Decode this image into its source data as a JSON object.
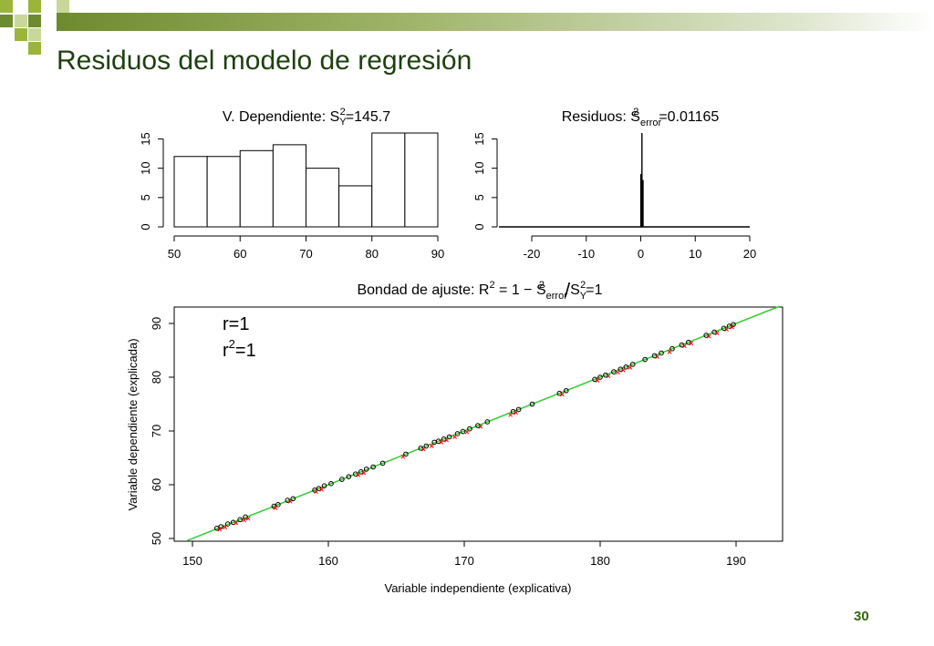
{
  "slide": {
    "title": "Residuos del modelo de regresión",
    "page_number": "30",
    "accent_colors": [
      "#6e8a2e",
      "#9bb53a",
      "#c8d79a"
    ]
  },
  "chart_data": [
    {
      "type": "bar",
      "subtype": "histogram",
      "title_main": "V. Dependiente: S",
      "title_sup": "2",
      "title_sub": "Y",
      "title_tail": "=145.7",
      "bin_edges": [
        50,
        55,
        60,
        65,
        70,
        75,
        80,
        85,
        90
      ],
      "values": [
        12,
        12,
        13,
        14,
        10,
        7,
        16,
        16
      ],
      "xlim": [
        50,
        90
      ],
      "ylim": [
        0,
        16
      ],
      "x_ticks": [
        "50",
        "60",
        "70",
        "80",
        "90"
      ],
      "y_ticks": [
        "0",
        "5",
        "10",
        "15"
      ]
    },
    {
      "type": "bar",
      "subtype": "histogram",
      "title_main": "Residuos: S",
      "title_sup": "2",
      "title_sub": "error",
      "title_tail": "=0.01165",
      "bars": [
        {
          "x": 0.0,
          "value": 9
        },
        {
          "x": 0.2,
          "value": 16
        },
        {
          "x": 0.4,
          "value": 8
        }
      ],
      "xlim": [
        -20,
        20
      ],
      "ylim": [
        0,
        16
      ],
      "x_ticks": [
        "-20",
        "-10",
        "0",
        "10",
        "20"
      ],
      "y_ticks": [
        "0",
        "5",
        "10",
        "15"
      ]
    },
    {
      "type": "scatter",
      "title_parts": {
        "lead": "Bondad de ajuste: R",
        "sup1": "2",
        "mid": " = 1 − S",
        "sup2": "2",
        "sub2": "error",
        "slash": "/",
        "tail1": "S",
        "sup3": "2",
        "sub3": "Y",
        "tail2": "=1"
      },
      "annotation_r": "r=1",
      "annotation_r2_base": "r",
      "annotation_r2_sup": "2",
      "annotation_r2_tail": "=1",
      "xlabel": "Variable independiente (explicativa)",
      "ylabel": "Variable dependiente (explicada)",
      "xlim": [
        149,
        193
      ],
      "ylim": [
        49,
        94
      ],
      "x_ticks": [
        "150",
        "160",
        "170",
        "180",
        "190"
      ],
      "y_ticks": [
        "50",
        "60",
        "70",
        "80",
        "90"
      ],
      "fit_line": {
        "intercept": -100,
        "slope": 1,
        "color": "#33cc33"
      },
      "series": [
        {
          "marker": "circle",
          "color": "#000000",
          "x": [
            151.8,
            152.1,
            152.6,
            153.0,
            153.5,
            153.9,
            156.0,
            156.3,
            157.0,
            157.4,
            159.0,
            159.3,
            159.7,
            160.2,
            161.0,
            161.5,
            162.0,
            162.4,
            162.8,
            163.3,
            164.0,
            165.7,
            166.8,
            167.2,
            167.8,
            168.1,
            168.5,
            168.9,
            169.5,
            169.9,
            170.4,
            171.0,
            171.7,
            173.6,
            174.0,
            175.0,
            177.0,
            177.5,
            179.6,
            180.0,
            180.4,
            181.0,
            181.5,
            181.9,
            182.4,
            183.3,
            184.0,
            184.5,
            185.3,
            186.0,
            186.5,
            187.8,
            188.4,
            189.1,
            189.5,
            189.8
          ],
          "y": [
            51.9,
            52.2,
            52.7,
            53.0,
            53.5,
            54.0,
            56.0,
            56.3,
            57.1,
            57.4,
            59.0,
            59.3,
            59.8,
            60.2,
            61.0,
            61.5,
            62.0,
            62.4,
            62.9,
            63.3,
            64.0,
            65.7,
            66.8,
            67.2,
            67.9,
            68.1,
            68.5,
            68.9,
            69.5,
            69.9,
            70.4,
            71.0,
            71.7,
            73.6,
            74.0,
            75.0,
            77.0,
            77.5,
            79.6,
            80.0,
            80.4,
            81.0,
            81.5,
            81.9,
            82.4,
            83.3,
            84.0,
            84.5,
            85.3,
            86.0,
            86.5,
            87.8,
            88.4,
            89.1,
            89.5,
            89.8
          ]
        },
        {
          "marker": "x",
          "color": "#ff0000",
          "x": [
            152.0,
            152.4,
            153.2,
            153.8,
            154.1,
            156.1,
            157.2,
            159.1,
            159.5,
            162.2,
            162.6,
            165.5,
            167.0,
            167.6,
            168.3,
            168.7,
            169.3,
            170.2,
            171.2,
            173.4,
            173.8,
            177.2,
            179.8,
            180.6,
            181.3,
            181.7,
            182.2,
            184.2,
            185.1,
            186.2,
            186.7,
            188.0,
            188.6,
            189.3,
            189.7
          ],
          "y": [
            51.7,
            52.1,
            52.9,
            53.4,
            53.7,
            55.7,
            56.9,
            58.7,
            59.1,
            61.8,
            62.2,
            65.2,
            66.6,
            67.2,
            67.9,
            68.3,
            68.9,
            69.8,
            70.8,
            73.0,
            73.4,
            76.8,
            79.4,
            80.2,
            80.9,
            81.3,
            81.8,
            83.8,
            84.7,
            85.8,
            86.3,
            87.6,
            88.2,
            88.9,
            89.3
          ]
        }
      ]
    }
  ]
}
